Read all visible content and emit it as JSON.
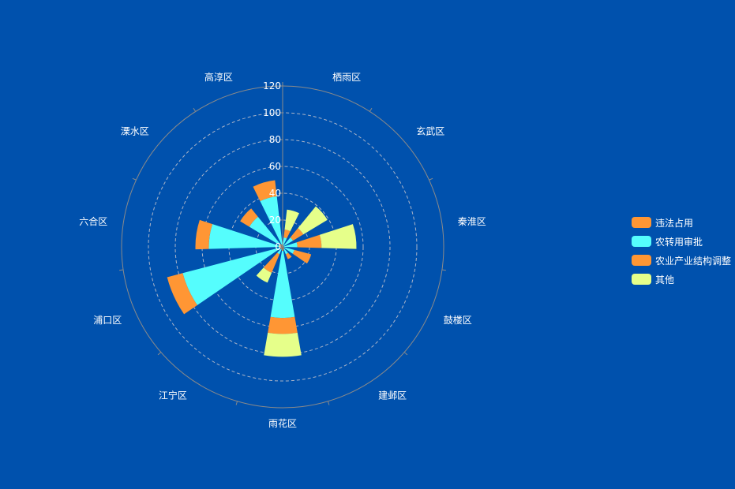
{
  "colors": {
    "background": "#0051ad",
    "axis_line": "#8a8a8a",
    "split_line": "#aab4c8",
    "label": "#ffffff"
  },
  "legend": {
    "items": [
      {
        "label": "违法占用",
        "color": "#ff9634"
      },
      {
        "label": "农转用审批",
        "color": "#55fdfd"
      },
      {
        "label": "农业产业结构调整",
        "color": "#ff9634"
      },
      {
        "label": "其他",
        "color": "#e6ff8a"
      }
    ]
  },
  "chart_data": {
    "type": "polar-bar-stacked",
    "title": "",
    "categories": [
      "栖雨区",
      "玄武区",
      "秦淮区",
      "鼓楼区",
      "建邺区",
      "雨花区",
      "江宁区",
      "浦口区",
      "六合区",
      "溧水区",
      "高淳区"
    ],
    "radius_ticks": [
      0,
      20,
      40,
      60,
      80,
      100,
      120
    ],
    "rlim": [
      0,
      120
    ],
    "series": [
      {
        "name": "违法占用",
        "color": "#ff9634",
        "values": [
          1,
          1,
          1,
          1,
          2,
          3,
          2,
          2,
          3,
          3,
          2
        ]
      },
      {
        "name": "农转用审批",
        "color": "#55fdfd",
        "values": [
          6,
          8,
          10,
          8,
          4,
          50,
          4,
          75,
          52,
          26,
          36
        ]
      },
      {
        "name": "农业产业结构调整",
        "color": "#ff9634",
        "values": [
          6,
          9,
          18,
          13,
          4,
          12,
          15,
          12,
          10,
          8,
          12
        ]
      },
      {
        "name": "其他",
        "color": "#e6ff8a",
        "values": [
          15,
          21,
          26,
          0,
          0,
          17,
          8,
          0,
          0,
          0,
          0
        ]
      }
    ],
    "grid": true,
    "legend_position": "right"
  }
}
